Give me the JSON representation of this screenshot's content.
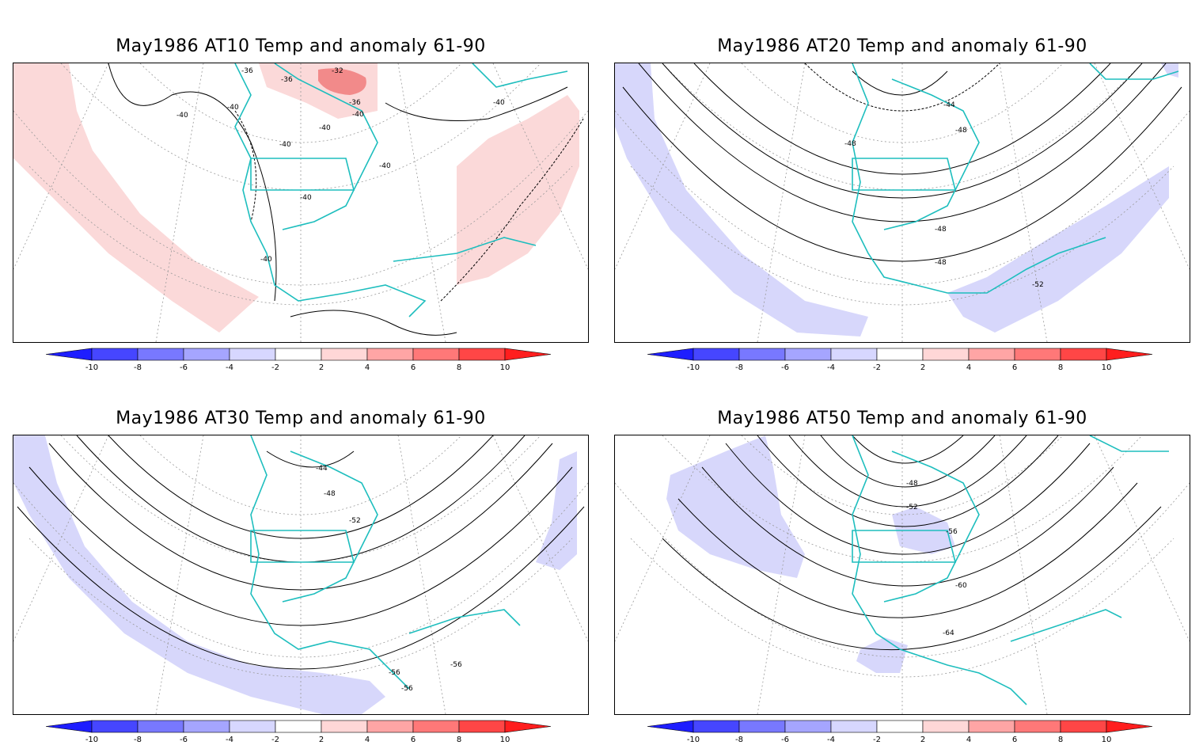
{
  "colorbar": {
    "ticks": [
      "-10",
      "-8",
      "-6",
      "-4",
      "-2",
      "2",
      "4",
      "6",
      "8",
      "10"
    ],
    "colors": [
      "#1e1eff",
      "#4646ff",
      "#7878ff",
      "#a5a5ff",
      "#d7d7ff",
      "#ffffff",
      "#ffd7d7",
      "#ffa5a5",
      "#ff7878",
      "#ff4646",
      "#ff1e1e"
    ]
  },
  "colors": {
    "coast": "#1ebebe",
    "contour": "#000000",
    "grid": "#9a9a9a",
    "neg_anom": "#d7d7fb",
    "pos_anom": "#fbd9d9",
    "pos_anom_strong": "#f28a8a"
  },
  "panels": [
    {
      "id": "at10",
      "title": "May1986 AT10 Temp and anomaly 61-90",
      "anomaly_sign": "positive",
      "contour_labels": [
        "-36",
        "-36",
        "-32",
        "-36",
        "-40",
        "-40",
        "-40",
        "-40",
        "-40",
        "-40",
        "-40",
        "-40",
        "-40"
      ]
    },
    {
      "id": "at20",
      "title": "May1986 AT20 Temp and anomaly 61-90",
      "anomaly_sign": "negative",
      "contour_labels": [
        "-44",
        "-48",
        "-48",
        "-48",
        "-48",
        "-52"
      ]
    },
    {
      "id": "at30",
      "title": "May1986 AT30 Temp and anomaly 61-90",
      "anomaly_sign": "negative",
      "contour_labels": [
        "-44",
        "-48",
        "-52",
        "-56",
        "-56",
        "-56"
      ]
    },
    {
      "id": "at50",
      "title": "May1986 AT50 Temp and anomaly 61-90",
      "anomaly_sign": "negative",
      "contour_labels": [
        "-48",
        "-52",
        "-56",
        "-60",
        "-64"
      ]
    }
  ]
}
